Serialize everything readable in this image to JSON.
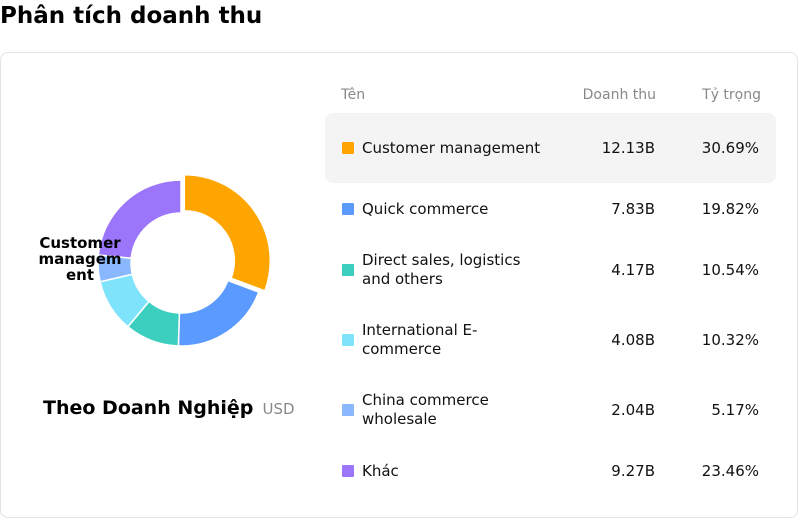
{
  "page": {
    "title": "Phân tích doanh thu"
  },
  "donut": {
    "center_label": "Customer management",
    "caption_title": "Theo Doanh Nghiệp",
    "caption_unit": "USD"
  },
  "table": {
    "headers": {
      "name": "Tên",
      "revenue": "Doanh thu",
      "share": "Tỷ trọng"
    },
    "rows": [
      {
        "name": "Customer management",
        "revenue": "12.13B",
        "share": "30.69%",
        "color": "#ffa500",
        "active": true
      },
      {
        "name": "Quick commerce",
        "revenue": "7.83B",
        "share": "19.82%",
        "color": "#5b9bff",
        "active": false
      },
      {
        "name": "Direct sales, logistics and others",
        "revenue": "4.17B",
        "share": "10.54%",
        "color": "#3ccfbf",
        "active": false
      },
      {
        "name": "International E-commerce",
        "revenue": "4.08B",
        "share": "10.32%",
        "color": "#7ee3fb",
        "active": false
      },
      {
        "name": "China commerce wholesale",
        "revenue": "2.04B",
        "share": "5.17%",
        "color": "#8ab8ff",
        "active": false
      },
      {
        "name": "Khác",
        "revenue": "9.27B",
        "share": "23.46%",
        "color": "#9b76fb",
        "active": false
      }
    ]
  },
  "chart_data": {
    "type": "pie",
    "title": "Theo Doanh Nghiệp",
    "unit": "USD",
    "labels": [
      "Customer management",
      "Quick commerce",
      "Direct sales, logistics and others",
      "International E-commerce",
      "China commerce wholesale",
      "Khác"
    ],
    "values": [
      12.13,
      7.83,
      4.17,
      4.08,
      2.04,
      9.27
    ],
    "shares_percent": [
      30.69,
      19.82,
      10.54,
      10.32,
      5.17,
      23.46
    ],
    "colors": [
      "#ffa500",
      "#5b9bff",
      "#3ccfbf",
      "#7ee3fb",
      "#8ab8ff",
      "#9b76fb"
    ],
    "highlighted": "Customer management",
    "donut": true
  }
}
